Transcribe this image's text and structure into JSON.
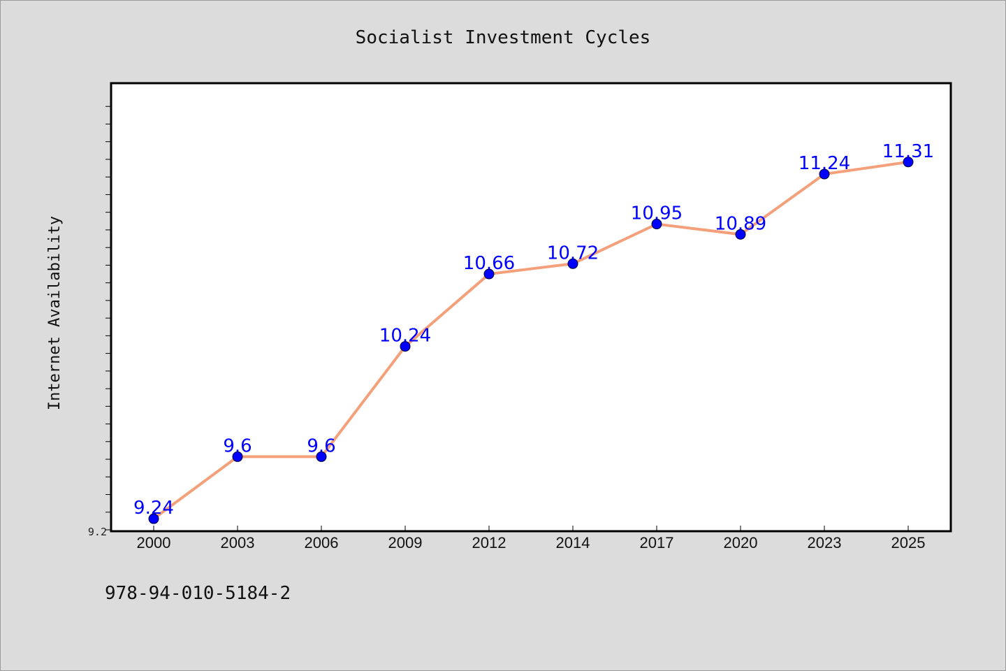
{
  "chart_data": {
    "type": "line",
    "title": "Socialist Investment Cycles",
    "xlabel": "",
    "ylabel": "Internet Availability",
    "categories": [
      "2000",
      "2003",
      "2006",
      "2009",
      "2012",
      "2014",
      "2017",
      "2020",
      "2023",
      "2025"
    ],
    "series": [
      {
        "values": [
          9.24,
          9.6,
          9.6,
          10.24,
          10.66,
          10.72,
          10.95,
          10.89,
          11.24,
          11.31
        ],
        "data_labels": [
          "9.24",
          "9.6",
          "9.6",
          "10.24",
          "10.66",
          "10.72",
          "10.95",
          "10.89",
          "11.24",
          "11.31"
        ]
      }
    ],
    "ylim": [
      9.2,
      11.8
    ],
    "y_tick_labels": [
      "9.2"
    ],
    "grid": false,
    "legend": "none"
  },
  "footer": {
    "code": "978-94-010-5184-2"
  },
  "colors": {
    "background": "#dcdcdc",
    "plot_background": "#ffffff",
    "line": "#f4a07a",
    "marker": "#0000ff",
    "label": "#0000ff"
  }
}
